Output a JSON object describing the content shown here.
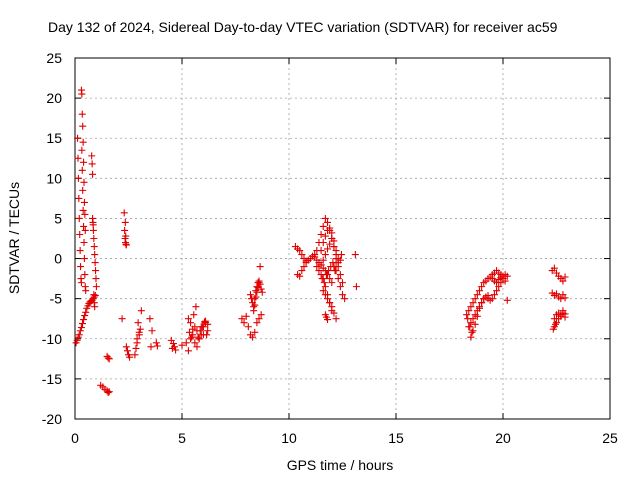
{
  "chart_data": {
    "type": "scatter",
    "title": "Day 132 of 2024, Sidereal Day-to-day VTEC variation (SDTVAR) for receiver ac59",
    "xlabel": "GPS time / hours",
    "ylabel": "SDTVAR / TECUs",
    "xlim": [
      0,
      25
    ],
    "ylim": [
      -20,
      25
    ],
    "xticks": [
      "0",
      "5",
      "10",
      "15",
      "20",
      "25"
    ],
    "yticks": [
      "-20",
      "-15",
      "-10",
      "-5",
      "0",
      "5",
      "10",
      "15",
      "20",
      "25"
    ],
    "grid": true,
    "marker": "plus",
    "color": "#e00000",
    "series": [
      {
        "name": "SDTVAR",
        "x": [
          0.05,
          0.1,
          0.15,
          0.2,
          0.25,
          0.3,
          0.35,
          0.4,
          0.45,
          0.5,
          0.55,
          0.6,
          0.65,
          0.7,
          0.75,
          0.8,
          0.85,
          0.9,
          0.95,
          0.12,
          0.14,
          0.16,
          0.18,
          0.2,
          0.22,
          0.24,
          0.26,
          0.28,
          0.3,
          0.32,
          0.34,
          0.36,
          0.38,
          0.4,
          0.42,
          0.44,
          0.46,
          0.48,
          0.5,
          0.3,
          0.32,
          0.34,
          0.36,
          0.38,
          0.4,
          0.42,
          0.44,
          0.46,
          0.48,
          0.78,
          0.8,
          0.82,
          0.84,
          0.86,
          0.88,
          0.9,
          0.92,
          0.94,
          0.96,
          0.98,
          1.0,
          0.82,
          0.85,
          0.88,
          0.9,
          0.92,
          1.2,
          1.3,
          1.4,
          1.5,
          1.55,
          1.6,
          1.5,
          1.55,
          1.6,
          2.3,
          2.32,
          2.34,
          2.36,
          2.38,
          2.4,
          2.35,
          2.37,
          2.2,
          2.4,
          2.5,
          2.45,
          2.55,
          2.8,
          2.9,
          3.0,
          3.05,
          2.95,
          2.85,
          3.1,
          3.0,
          2.9,
          3.5,
          3.6,
          3.8,
          3.85,
          3.55,
          4.5,
          4.6,
          4.65,
          4.55,
          4.7,
          5.0,
          5.2,
          5.3,
          5.4,
          5.5,
          5.6,
          5.7,
          5.8,
          5.9,
          6.0,
          6.1,
          6.2,
          5.3,
          5.4,
          5.5,
          5.6,
          5.7,
          5.8,
          5.9,
          6.0,
          6.1,
          6.2,
          5.35,
          5.45,
          5.55,
          5.65,
          5.75,
          5.85,
          5.95,
          6.05,
          6.15,
          7.8,
          7.9,
          8.0,
          8.1,
          8.2,
          8.3,
          8.4,
          8.5,
          8.6,
          8.7,
          8.2,
          8.25,
          8.3,
          8.35,
          8.4,
          8.45,
          8.5,
          8.55,
          8.6,
          8.65,
          8.7,
          8.75,
          8.35,
          8.4,
          8.45,
          8.5,
          8.55,
          8.6,
          8.65,
          10.3,
          10.4,
          10.5,
          10.6,
          10.7,
          10.8,
          10.4,
          10.5,
          10.6,
          10.7,
          10.8,
          10.9,
          11.0,
          11.1,
          11.2,
          11.3,
          11.4,
          11.5,
          11.6,
          11.7,
          11.8,
          11.9,
          12.0,
          12.1,
          12.2,
          12.3,
          12.4,
          11.5,
          11.6,
          11.7,
          11.8,
          11.9,
          12.0,
          12.1,
          12.2,
          11.4,
          11.5,
          11.6,
          11.7,
          11.8,
          11.9,
          12.0,
          12.1,
          12.2,
          11.55,
          11.65,
          11.75,
          11.85,
          11.95,
          12.05,
          12.15,
          11.6,
          11.7,
          11.8,
          11.9,
          12.0,
          12.1,
          12.2,
          11.3,
          11.4,
          11.5,
          11.6,
          11.7,
          11.8,
          11.9,
          12.0,
          11.2,
          11.3,
          11.4,
          11.5,
          11.6,
          11.7,
          11.8,
          11.9,
          12.0,
          12.1,
          12.2,
          12.3,
          11.7,
          11.75,
          11.8,
          12.2,
          12.3,
          12.4,
          12.5,
          12.6,
          12.5,
          12.4,
          12.3,
          12.45,
          13.1,
          13.15,
          18.3,
          18.4,
          18.5,
          18.6,
          18.7,
          18.8,
          18.9,
          19.0,
          19.1,
          19.2,
          19.3,
          19.4,
          19.5,
          19.6,
          19.7,
          19.8,
          19.9,
          20.0,
          20.1,
          20.2,
          18.4,
          18.5,
          18.6,
          18.7,
          18.8,
          18.9,
          19.0,
          19.1,
          19.2,
          19.3,
          18.5,
          18.6,
          18.7,
          18.8,
          18.9,
          19.0,
          19.1,
          19.2,
          19.3,
          19.4,
          19.5,
          19.6,
          19.7,
          19.8,
          19.9,
          20.0,
          20.1,
          20.2,
          18.35,
          18.45,
          18.55,
          19.5,
          19.6,
          19.7,
          19.8,
          19.9,
          20.0,
          22.3,
          22.4,
          22.5,
          22.6,
          22.7,
          22.8,
          22.9,
          22.3,
          22.4,
          22.5,
          22.6,
          22.7,
          22.8,
          22.9,
          22.4,
          22.5,
          22.6,
          22.7,
          22.8,
          22.9,
          22.4,
          22.5,
          22.6,
          22.7,
          22.8,
          22.9,
          22.35,
          22.45
        ],
        "y": [
          -10.5,
          -10.2,
          -9.8,
          -9.5,
          -9.0,
          -8.6,
          -8.1,
          -7.6,
          -7.1,
          -6.7,
          -6.2,
          -5.9,
          -5.6,
          -5.4,
          -5.3,
          -5.2,
          -5.0,
          -4.8,
          -4.6,
          15.0,
          12.5,
          10.0,
          7.5,
          5.0,
          3.0,
          1.0,
          -1.0,
          -2.5,
          -3.0,
          13.5,
          11.0,
          8.5,
          6.0,
          4.0,
          2.0,
          0.0,
          -2.0,
          -3.5,
          -4.0,
          21.0,
          20.5,
          18.0,
          16.5,
          14.5,
          12.0,
          9.5,
          7.0,
          5.5,
          3.5,
          12.8,
          11.8,
          10.5,
          4.5,
          3.5,
          2.5,
          1.5,
          0.5,
          -0.5,
          -1.5,
          -2.5,
          -3.5,
          5.0,
          4.2,
          -4.5,
          -5.5,
          -6.0,
          -15.8,
          -16.0,
          -16.3,
          -16.5,
          -16.7,
          -16.6,
          -12.2,
          -12.4,
          -12.5,
          5.7,
          3.5,
          2.5,
          2.0,
          1.8,
          1.7,
          4.5,
          2.8,
          -7.5,
          -11.0,
          -12.0,
          -11.5,
          -12.3,
          -12.0,
          -10.5,
          -9.5,
          -8.8,
          -8.0,
          -11.2,
          -6.5,
          -9.2,
          -10.0,
          -7.5,
          -9.0,
          -10.5,
          -10.9,
          -11.0,
          -10.2,
          -10.6,
          -11.0,
          -11.2,
          -11.4,
          -10.8,
          -10.5,
          -11.5,
          -10.0,
          -9.5,
          -8.5,
          -9.0,
          -10.0,
          -9.5,
          -8.5,
          -8.0,
          -9.0,
          -7.5,
          -8.0,
          -8.8,
          -10.5,
          -11.0,
          -10.0,
          -8.5,
          -9.5,
          -7.8,
          -8.2,
          -9.2,
          -9.8,
          -7.0,
          -6.0,
          -9.8,
          -9.0,
          -8.5,
          -7.9,
          -9.5,
          -7.5,
          -8.0,
          -7.2,
          -8.5,
          -9.5,
          -9.8,
          -9.2,
          -8.0,
          -7.5,
          -7.0,
          -4.5,
          -5.0,
          -5.5,
          -6.0,
          -5.0,
          -4.0,
          -3.5,
          -3.0,
          -2.8,
          -3.2,
          -3.8,
          -4.2,
          -6.5,
          -5.8,
          -4.8,
          -4.2,
          -3.6,
          -3.0,
          -1.0,
          1.5,
          1.2,
          1.0,
          0.5,
          0.0,
          -0.3,
          -2.0,
          -2.2,
          -1.5,
          -1.0,
          -0.5,
          -0.2,
          0.0,
          0.3,
          0.5,
          1.0,
          2.0,
          3.0,
          4.0,
          5.0,
          4.5,
          3.5,
          2.5,
          1.5,
          0.5,
          -0.5,
          -0.2,
          1.0,
          2.0,
          2.8,
          3.5,
          3.8,
          3.2,
          2.2,
          1.0,
          -0.5,
          -0.8,
          -0.2,
          0.5,
          1.2,
          1.8,
          2.5,
          1.5,
          0.0,
          -2.5,
          -3.0,
          -2.0,
          -1.5,
          -1.0,
          -0.5,
          -1.5,
          -4.0,
          -4.5,
          -5.0,
          -5.5,
          -6.0,
          -6.8,
          -7.5,
          -1.0,
          -1.5,
          -2.0,
          -2.5,
          -3.5,
          -4.5,
          -5.5,
          -6.5,
          0.2,
          -0.2,
          -0.5,
          -0.8,
          -1.2,
          -1.5,
          -2.0,
          -2.5,
          -3.0,
          -1.0,
          -0.5,
          0.0,
          -7.0,
          -7.3,
          -7.6,
          -1.5,
          -2.5,
          -3.5,
          -4.5,
          -5.0,
          -3.0,
          -2.0,
          -1.0,
          0.5,
          0.5,
          -3.5,
          -7.0,
          -6.5,
          -6.0,
          -5.5,
          -5.0,
          -4.5,
          -4.0,
          -3.5,
          -3.0,
          -2.8,
          -2.5,
          -2.3,
          -2.0,
          -1.8,
          -1.5,
          -1.8,
          -2.0,
          -2.2,
          -2.0,
          -2.2,
          -8.5,
          -8.0,
          -7.5,
          -7.0,
          -6.5,
          -6.0,
          -5.5,
          -5.0,
          -4.8,
          -4.6,
          -9.8,
          -9.0,
          -8.2,
          -7.2,
          -6.2,
          -5.5,
          -5.0,
          -4.8,
          -5.0,
          -5.2,
          -5.0,
          -4.5,
          -4.0,
          -3.5,
          -3.0,
          -2.5,
          -2.8,
          -5.2,
          -7.5,
          -8.5,
          -9.2,
          -2.5,
          -2.8,
          -3.0,
          -2.6,
          -2.4,
          -2.2,
          -1.5,
          -1.2,
          -1.8,
          -2.2,
          -2.5,
          -2.8,
          -2.3,
          -4.3,
          -4.6,
          -4.4,
          -4.8,
          -5.0,
          -4.5,
          -4.9,
          -7.5,
          -7.0,
          -6.8,
          -7.2,
          -6.5,
          -6.9,
          -8.5,
          -8.0,
          -7.5,
          -7.0,
          -6.8,
          -7.3,
          -8.8,
          -8.2
        ]
      }
    ]
  }
}
